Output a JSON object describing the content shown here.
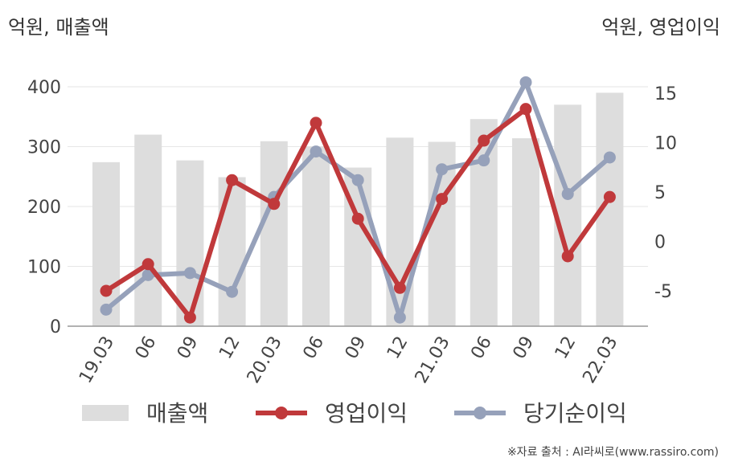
{
  "chart_data": {
    "type": "bar+line",
    "categories": [
      "19.03",
      "06",
      "09",
      "12",
      "20.03",
      "06",
      "09",
      "12",
      "21.03",
      "06",
      "09",
      "12",
      "22.03"
    ],
    "left_axis": {
      "label": "억원, 매출액",
      "ticks": [
        0,
        100,
        200,
        300,
        400
      ],
      "ylim": [
        0,
        400
      ]
    },
    "right_axis": {
      "label": "억원, 영업이익",
      "ticks": [
        -5,
        0,
        5,
        10,
        15
      ],
      "ylim": [
        -9,
        16
      ]
    },
    "series": [
      {
        "name": "매출액",
        "type": "bar",
        "axis": "left",
        "color": "#dddddd",
        "values": [
          274,
          320,
          277,
          249,
          309,
          300,
          265,
          315,
          308,
          346,
          314,
          370,
          390
        ]
      },
      {
        "name": "영업이익",
        "type": "line",
        "axis": "right",
        "color": "#c0393b",
        "values": [
          -5.0,
          -2.3,
          -7.7,
          6.2,
          3.8,
          12.0,
          2.3,
          -4.7,
          4.3,
          10.2,
          13.4,
          -1.5,
          4.5
        ]
      },
      {
        "name": "당기순이익",
        "type": "line",
        "axis": "right",
        "color": "#96a1ba",
        "values": [
          -6.9,
          -3.4,
          -3.2,
          -5.1,
          4.5,
          9.1,
          6.2,
          -7.7,
          7.3,
          8.2,
          16.1,
          4.8,
          8.5
        ]
      }
    ],
    "grid": true,
    "legend": "bottom"
  },
  "source": "※자료 출처 : AI라씨로(www.rassiro.com)"
}
